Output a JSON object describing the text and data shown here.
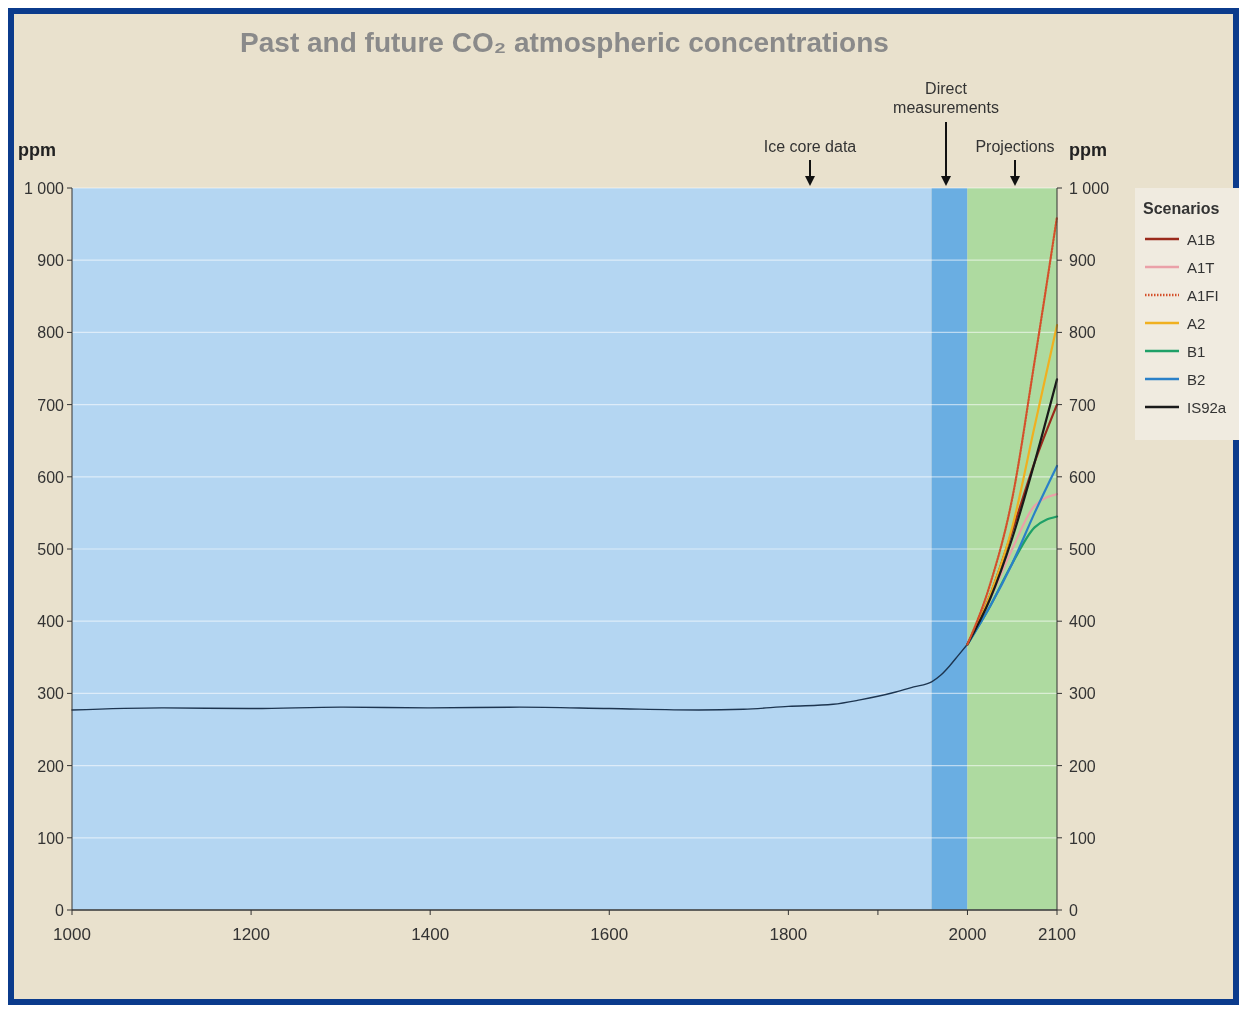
{
  "chart_data": {
    "type": "line",
    "title": "Past and future CO₂ atmospheric concentrations",
    "ylabel": "ppm",
    "y2label": "ppm",
    "legend_title": "Scenarios",
    "legend": "right",
    "grid": "y",
    "xlim": [
      1000,
      2100
    ],
    "xticks": [
      1000,
      1200,
      1400,
      1600,
      1800,
      {
        "value": 1900,
        "label": null
      },
      2000,
      2100
    ],
    "ylim": [
      0,
      1000
    ],
    "yticks": [
      0,
      100,
      200,
      300,
      400,
      500,
      600,
      700,
      800,
      900,
      {
        "value": 1000,
        "label": "1 000"
      }
    ],
    "y2lim": [
      0,
      1000
    ],
    "y2ticks": [
      0,
      100,
      200,
      300,
      400,
      500,
      600,
      700,
      800,
      900,
      {
        "value": 1000,
        "label": "1 000"
      }
    ],
    "bands": [
      {
        "axis": "x",
        "from": 1000,
        "to": 1960,
        "color": "#b4d6f2"
      },
      {
        "axis": "x",
        "from": 1960,
        "to": 2000,
        "color": "#6aaee2"
      },
      {
        "axis": "x",
        "from": 2000,
        "to": 2100,
        "color": "#aedaa0"
      }
    ],
    "annotations": [
      "Ice core data",
      "Direct measurements",
      "Projections"
    ],
    "series": [
      {
        "color": "#1d3550",
        "x": [
          1000,
          1100,
          1200,
          1300,
          1400,
          1500,
          1600,
          1700,
          1750,
          1800,
          1850,
          1880,
          1900,
          1920,
          1940,
          1960,
          1970,
          1980,
          1990,
          2000
        ],
        "values": [
          277,
          280,
          279,
          281,
          280,
          281,
          279,
          277,
          278,
          282,
          285,
          291,
          296,
          302,
          309,
          316,
          325,
          338,
          353,
          368
        ]
      },
      {
        "name": "A1B",
        "color": "#9a2a1c",
        "x": [
          2000,
          2025,
          2050,
          2075,
          2100
        ],
        "values": [
          368,
          435,
          525,
          620,
          700
        ]
      },
      {
        "name": "A1T",
        "color": "#eaa0a8",
        "x": [
          2000,
          2025,
          2050,
          2075,
          2100
        ],
        "values": [
          368,
          430,
          500,
          560,
          576
        ]
      },
      {
        "name": "A1FI",
        "color": "#d4502a",
        "line_style": "dotted",
        "x": [
          2000,
          2025,
          2050,
          2075,
          2100
        ],
        "values": [
          368,
          450,
          570,
          760,
          960
        ]
      },
      {
        "name": "A2",
        "color": "#f0b020",
        "x": [
          2000,
          2025,
          2050,
          2075,
          2100
        ],
        "values": [
          368,
          435,
          530,
          670,
          810
        ]
      },
      {
        "name": "B1",
        "color": "#1fa068",
        "x": [
          2000,
          2025,
          2050,
          2075,
          2100
        ],
        "values": [
          368,
          420,
          480,
          530,
          545
        ]
      },
      {
        "name": "B2",
        "color": "#2a80c8",
        "x": [
          2000,
          2025,
          2050,
          2075,
          2100
        ],
        "values": [
          368,
          420,
          480,
          550,
          615
        ]
      },
      {
        "name": "IS92a",
        "color": "#1a1a1a",
        "x": [
          2000,
          2025,
          2050,
          2075,
          2100
        ],
        "values": [
          368,
          430,
          515,
          620,
          735
        ]
      }
    ]
  }
}
